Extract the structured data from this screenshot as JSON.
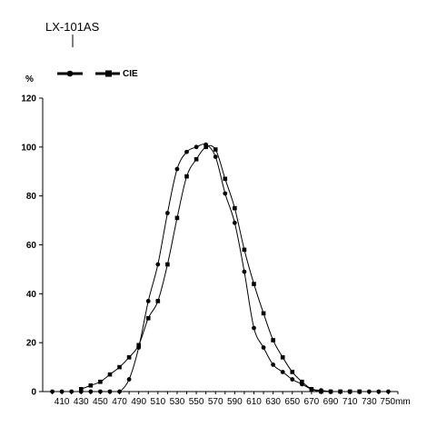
{
  "chart_data": {
    "type": "line",
    "title": "",
    "annotation": "LX-101AS",
    "ylabel": "%",
    "xlabel": "",
    "x_unit_label": "750mm",
    "xlim": [
      390,
      760
    ],
    "ylim": [
      0,
      120
    ],
    "x_ticks": [
      410,
      430,
      450,
      470,
      490,
      510,
      530,
      550,
      570,
      590,
      610,
      630,
      650,
      670,
      690,
      710,
      730,
      750
    ],
    "x_tick_labels": [
      "410",
      "430",
      "450",
      "470",
      "490",
      "510",
      "530",
      "550",
      "570",
      "590",
      "610",
      "630",
      "650",
      "670",
      "690",
      "710",
      "730",
      "750mm"
    ],
    "y_ticks": [
      0,
      20,
      40,
      60,
      80,
      100,
      120
    ],
    "y_tick_labels": [
      "0",
      "20",
      "40",
      "60",
      "80",
      "100",
      "120"
    ],
    "grid": false,
    "legend_position": "top-left",
    "series": [
      {
        "name": "",
        "marker": "circle",
        "x": [
          400,
          410,
          420,
          430,
          440,
          450,
          460,
          470,
          480,
          490,
          500,
          510,
          520,
          530,
          540,
          550,
          560,
          570,
          580,
          590,
          600,
          610,
          620,
          630,
          640,
          650,
          660,
          670,
          680,
          690,
          700,
          710,
          720,
          730,
          740,
          750
        ],
        "y": [
          0,
          0,
          0,
          0,
          0,
          0,
          0,
          0,
          5,
          18,
          37,
          52,
          73,
          91,
          98,
          100,
          101,
          96,
          81,
          69,
          49,
          26,
          18,
          11,
          8,
          5,
          3,
          1,
          0.5,
          0,
          0,
          0,
          0,
          0,
          0,
          0
        ]
      },
      {
        "name": "CIE",
        "marker": "square",
        "x": [
          430,
          440,
          450,
          460,
          470,
          480,
          490,
          500,
          510,
          520,
          530,
          540,
          550,
          560,
          570,
          580,
          590,
          600,
          610,
          620,
          630,
          640,
          650,
          660,
          670,
          680,
          690,
          700,
          710,
          720
        ],
        "y": [
          1,
          2.5,
          4,
          7,
          10,
          14,
          19,
          30,
          37,
          52,
          71,
          88,
          95,
          100,
          99,
          87,
          75,
          58,
          44,
          32,
          21,
          14,
          8,
          4,
          1,
          0,
          0,
          0,
          0,
          0
        ]
      }
    ]
  }
}
